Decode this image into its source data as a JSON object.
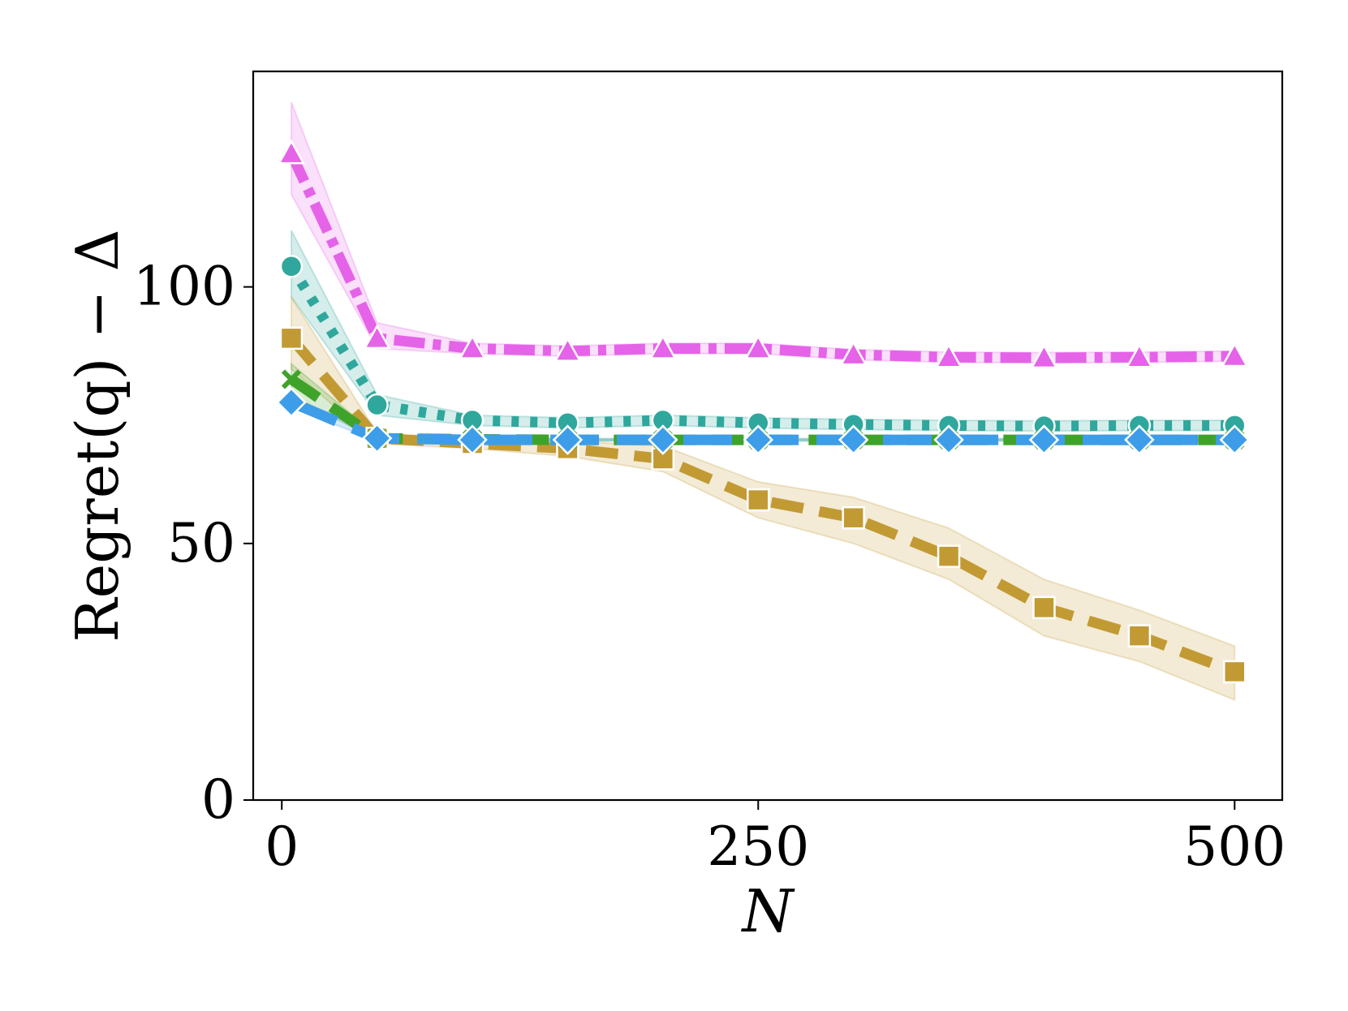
{
  "chart_data": {
    "type": "line",
    "xlabel": "N",
    "ylabel": "Regret(q) − Δ",
    "xlim": [
      -15,
      525
    ],
    "ylim": [
      0,
      142
    ],
    "xticks": [
      0,
      250,
      500
    ],
    "yticks": [
      0,
      50,
      100
    ],
    "grid": false,
    "legend": "none",
    "x": [
      5,
      50,
      100,
      150,
      200,
      250,
      300,
      350,
      400,
      450,
      500
    ],
    "series": [
      {
        "color": "#e563e8",
        "marker": "triangle",
        "linestyle": "dashdot",
        "values": [
          126,
          90,
          88,
          87.5,
          88,
          88,
          86.8,
          86.3,
          86.2,
          86.3,
          86.5
        ],
        "lower": [
          118,
          88,
          87,
          86.5,
          87,
          87,
          85.8,
          85.3,
          85.2,
          85.3,
          85.5
        ],
        "upper": [
          136,
          93,
          89,
          88.5,
          89,
          89,
          87.8,
          87.3,
          87.2,
          87.3,
          87.5
        ]
      },
      {
        "color": "#2fa79c",
        "marker": "circle",
        "linestyle": "dotted",
        "values": [
          104,
          77,
          74,
          73.5,
          74,
          73.5,
          73.2,
          73,
          72.9,
          73,
          73
        ],
        "lower": [
          98,
          75,
          73,
          72.5,
          73,
          72.5,
          72.2,
          72,
          71.9,
          72,
          72
        ],
        "upper": [
          111,
          79,
          75,
          74.5,
          75,
          74.5,
          74.2,
          74,
          73.9,
          74,
          74
        ]
      },
      {
        "color": "#c29a34",
        "marker": "square",
        "linestyle": "dashed",
        "values": [
          90,
          70.5,
          69.5,
          68.5,
          66.5,
          58.5,
          55,
          47.5,
          37.5,
          32,
          25
        ],
        "lower": [
          84,
          69.5,
          68.5,
          67,
          64,
          55,
          50,
          43,
          32,
          27,
          19.5
        ],
        "upper": [
          98,
          71.5,
          70.5,
          70,
          69,
          62,
          59,
          53,
          43,
          37,
          30
        ]
      },
      {
        "color": "#3fa32a",
        "marker": "x",
        "linestyle": "dashed",
        "values": [
          82,
          70.5,
          70.3,
          70.2,
          70.2,
          70.2,
          70.2,
          70.2,
          70.2,
          70.2,
          70.2
        ],
        "lower": [
          79,
          70,
          70,
          70,
          70,
          70,
          70,
          70,
          70,
          70,
          70
        ],
        "upper": [
          85,
          71,
          70.6,
          70.4,
          70.4,
          70.4,
          70.4,
          70.4,
          70.4,
          70.4,
          70.4
        ]
      },
      {
        "color": "#3e9de8",
        "marker": "diamond",
        "linestyle": "longdash",
        "values": [
          77.5,
          70.5,
          70.2,
          70.2,
          70.2,
          70.2,
          70.2,
          70.2,
          70.2,
          70.2,
          70.2
        ],
        "lower": [
          76.5,
          70,
          70,
          70,
          70,
          70,
          70,
          70,
          70,
          70,
          70
        ],
        "upper": [
          78.5,
          71,
          70.4,
          70.4,
          70.4,
          70.4,
          70.4,
          70.4,
          70.4,
          70.4,
          70.4
        ]
      }
    ]
  }
}
